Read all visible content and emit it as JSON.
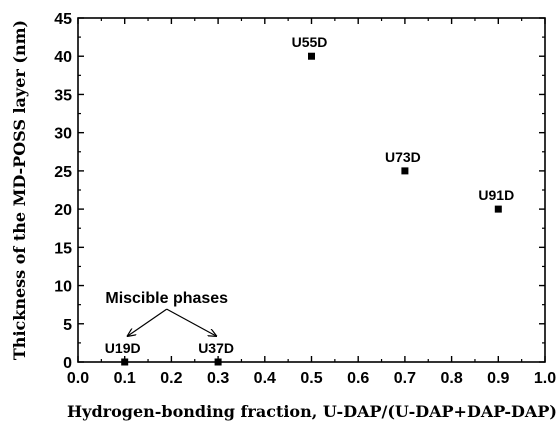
{
  "chart_data": {
    "type": "scatter",
    "xlabel": "Hydrogen-bonding fraction, U-DAP/(U-DAP+DAP-DAP)",
    "ylabel": "Thickness of the MD-POSS layer (nm)",
    "xlim": [
      0.0,
      1.0
    ],
    "ylim": [
      0,
      45
    ],
    "x_ticks": [
      0.0,
      0.1,
      0.2,
      0.3,
      0.4,
      0.5,
      0.6,
      0.7,
      0.8,
      0.9,
      1.0
    ],
    "x_tick_labels": [
      "0.0",
      "0.1",
      "0.2",
      "0.3",
      "0.4",
      "0.5",
      "0.6",
      "0.7",
      "0.8",
      "0.9",
      "1.0"
    ],
    "y_ticks": [
      0,
      5,
      10,
      15,
      20,
      25,
      30,
      35,
      40,
      45
    ],
    "y_tick_labels": [
      "0",
      "5",
      "10",
      "15",
      "20",
      "25",
      "30",
      "35",
      "40",
      "45"
    ],
    "grid": false,
    "marker": "square",
    "marker_color": "#000000",
    "points": [
      {
        "x": 0.1,
        "y": 0,
        "label": "U19D"
      },
      {
        "x": 0.3,
        "y": 0,
        "label": "U37D"
      },
      {
        "x": 0.5,
        "y": 40,
        "label": "U55D"
      },
      {
        "x": 0.7,
        "y": 25,
        "label": "U73D"
      },
      {
        "x": 0.9,
        "y": 20,
        "label": "U91D"
      }
    ],
    "annotations": [
      {
        "text": "Miscible phases",
        "targets": [
          "U19D",
          "U37D"
        ]
      }
    ]
  }
}
